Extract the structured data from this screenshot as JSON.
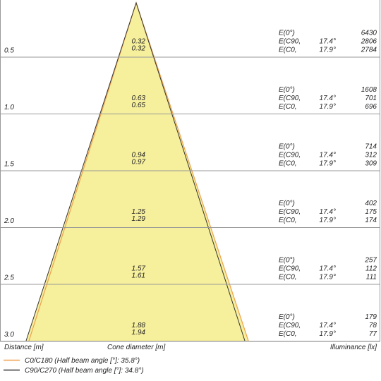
{
  "chart_data": {
    "type": "diagram",
    "rows": [
      {
        "distance": "0.5",
        "diameter_c0": "0.32",
        "diameter_c90": "0.32",
        "e0_label": "E(0°)",
        "e0": "6430",
        "ec90_label": "E(C90,",
        "ec90_angle": "17.4°",
        "ec90": "2806",
        "ec0_label": "E(C0,",
        "ec0_angle": "17.9°",
        "ec0": "2784"
      },
      {
        "distance": "1.0",
        "diameter_c0": "0.63",
        "diameter_c90": "0.65",
        "e0_label": "E(0°)",
        "e0": "1608",
        "ec90_label": "E(C90,",
        "ec90_angle": "17.4°",
        "ec90": "701",
        "ec0_label": "E(C0,",
        "ec0_angle": "17.9°",
        "ec0": "696"
      },
      {
        "distance": "1.5",
        "diameter_c0": "0.94",
        "diameter_c90": "0.97",
        "e0_label": "E(0°)",
        "e0": "714",
        "ec90_label": "E(C90,",
        "ec90_angle": "17.4°",
        "ec90": "312",
        "ec0_label": "E(C0,",
        "ec0_angle": "17.9°",
        "ec0": "309"
      },
      {
        "distance": "2.0",
        "diameter_c0": "1.25",
        "diameter_c90": "1.29",
        "e0_label": "E(0°)",
        "e0": "402",
        "ec90_label": "E(C90,",
        "ec90_angle": "17.4°",
        "ec90": "175",
        "ec0_label": "E(C0,",
        "ec0_angle": "17.9°",
        "ec0": "174"
      },
      {
        "distance": "2.5",
        "diameter_c0": "1.57",
        "diameter_c90": "1.61",
        "e0_label": "E(0°)",
        "e0": "257",
        "ec90_label": "E(C90,",
        "ec90_angle": "17.4°",
        "ec90": "112",
        "ec0_label": "E(C0,",
        "ec0_angle": "17.9°",
        "ec0": "111"
      },
      {
        "distance": "3.0",
        "diameter_c0": "1.88",
        "diameter_c90": "1.94",
        "e0_label": "E(0°)",
        "e0": "179",
        "ec90_label": "E(C90,",
        "ec90_angle": "17.4°",
        "ec90": "78",
        "ec0_label": "E(C0,",
        "ec0_angle": "17.9°",
        "ec0": "77"
      }
    ],
    "axis_labels": {
      "distance": "Distance [m]",
      "diameter": "Cone diameter [m]",
      "illuminance": "Illuminance [lx]"
    },
    "legend": [
      {
        "label": "C0/C180 (Half beam angle [°]: 35.8°)",
        "color": "#f0a050"
      },
      {
        "label": "C90/C270 (Half beam angle [°]: 34.8°)",
        "color": "#333333"
      }
    ],
    "colors": {
      "cone_fill": "#f6ef9c",
      "grid": "#999999"
    }
  }
}
